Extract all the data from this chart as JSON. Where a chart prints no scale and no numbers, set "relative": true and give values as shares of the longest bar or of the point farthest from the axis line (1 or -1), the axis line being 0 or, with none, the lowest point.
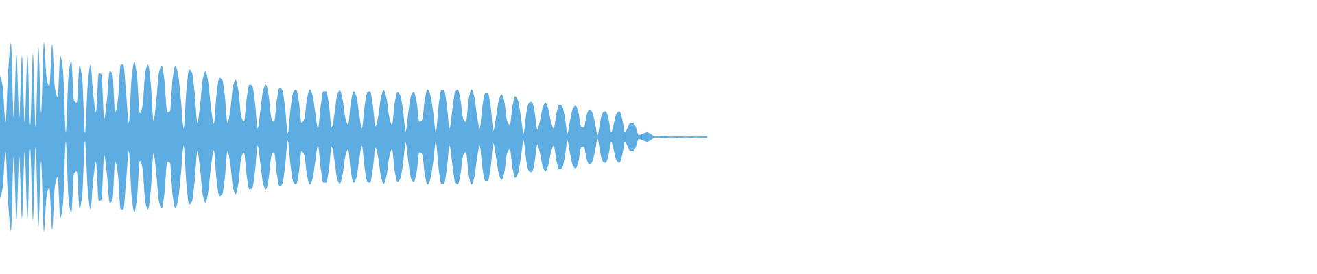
{
  "chart_data": {
    "type": "area",
    "relative": true,
    "categories": [
      null,
      null,
      null,
      null,
      null,
      null,
      null,
      null,
      null,
      null,
      null,
      null,
      null,
      null,
      null,
      null,
      null,
      null,
      null,
      null,
      null,
      null,
      null,
      null,
      null,
      null,
      null,
      null,
      null,
      null,
      null,
      null,
      null,
      null,
      null,
      null,
      null,
      null,
      null,
      null,
      null,
      null,
      null,
      null,
      null,
      null,
      null,
      null,
      null,
      null,
      null,
      null,
      null,
      null,
      null,
      null,
      null,
      null,
      null,
      null,
      null,
      null,
      null,
      null,
      null,
      null,
      null,
      null,
      null,
      null,
      null,
      null,
      null,
      null,
      null,
      null,
      null,
      null,
      null,
      null,
      null,
      null,
      null,
      null,
      null,
      null,
      null,
      null,
      null,
      null,
      null,
      null,
      null,
      null,
      null,
      null,
      null,
      null,
      null,
      null,
      null,
      null,
      null,
      null,
      null,
      null,
      null,
      null,
      null,
      null,
      null,
      null,
      null,
      null,
      null,
      null,
      null,
      null,
      null,
      null,
      null,
      null,
      null,
      null,
      null,
      null,
      null,
      null,
      null,
      null,
      null,
      null,
      null,
      null,
      null,
      null,
      null,
      null,
      null,
      null,
      null,
      null,
      null,
      null,
      null,
      null,
      null,
      null,
      null,
      null,
      null,
      null,
      null,
      null,
      null,
      null,
      null,
      null,
      null,
      null,
      null,
      null,
      null,
      null,
      null,
      null,
      null,
      null,
      null,
      null,
      null,
      null,
      null,
      null,
      null,
      null,
      null,
      null,
      null,
      null,
      null,
      null,
      null,
      null,
      null,
      null,
      null,
      null,
      null,
      null,
      null,
      null,
      null,
      null,
      null,
      null,
      null,
      null,
      null,
      null,
      null,
      null,
      null,
      null,
      null,
      null,
      null,
      null,
      null,
      null,
      null,
      null,
      null,
      null,
      null,
      null,
      null,
      null,
      null,
      null,
      null,
      null,
      null,
      null,
      null,
      null,
      null,
      null,
      null,
      null,
      null,
      null,
      null,
      null,
      null,
      null,
      null,
      null,
      null,
      null,
      null,
      null,
      null,
      null,
      null,
      null,
      null,
      null,
      null,
      null,
      null,
      null,
      null,
      null,
      null,
      null,
      null,
      null,
      null
    ],
    "series": [
      {
        "color": "#5dade2",
        "values": [
          0.65,
          0.53,
          0.15,
          0.7,
          0.99,
          0.2,
          0.87,
          0.2,
          0.86,
          0.15,
          0.86,
          0.12,
          0.88,
          0.1,
          0.95,
          0.25,
          1.0,
          0.62,
          0.53,
          0.98,
          0.52,
          0.42,
          0.85,
          0.69,
          0.05,
          0.65,
          0.8,
          0.38,
          0.36,
          0.75,
          0.61,
          0.04,
          0.55,
          0.76,
          0.45,
          0.26,
          0.67,
          0.66,
          0.19,
          0.39,
          0.69,
          0.67,
          0.26,
          0.39,
          0.76,
          0.76,
          0.46,
          0.15,
          0.62,
          0.79,
          0.63,
          0.25,
          0.33,
          0.68,
          0.76,
          0.56,
          0.17,
          0.38,
          0.68,
          0.75,
          0.59,
          0.26,
          0.27,
          0.62,
          0.75,
          0.65,
          0.39,
          0.09,
          0.49,
          0.71,
          0.68,
          0.47,
          0.15,
          0.34,
          0.61,
          0.69,
          0.57,
          0.3,
          0.14,
          0.45,
          0.62,
          0.61,
          0.44,
          0.15,
          0.28,
          0.53,
          0.6,
          0.48,
          0.22,
          0.16,
          0.41,
          0.55,
          0.54,
          0.37,
          0.09,
          0.28,
          0.49,
          0.55,
          0.44,
          0.2,
          0.16,
          0.39,
          0.52,
          0.49,
          0.31,
          0.04,
          0.3,
          0.47,
          0.5,
          0.38,
          0.15,
          0.19,
          0.4,
          0.5,
          0.44,
          0.26,
          0.09,
          0.33,
          0.48,
          0.48,
          0.34,
          0.1,
          0.24,
          0.44,
          0.49,
          0.39,
          0.2,
          0.13,
          0.37,
          0.48,
          0.43,
          0.25,
          0.09,
          0.32,
          0.47,
          0.48,
          0.34,
          0.11,
          0.22,
          0.42,
          0.49,
          0.41,
          0.21,
          0.13,
          0.36,
          0.47,
          0.44,
          0.29,
          0.06,
          0.27,
          0.44,
          0.47,
          0.37,
          0.16,
          0.18,
          0.4,
          0.5,
          0.44,
          0.27,
          0.05,
          0.33,
          0.49,
          0.49,
          0.34,
          0.09,
          0.28,
          0.47,
          0.5,
          0.39,
          0.19,
          0.16,
          0.4,
          0.5,
          0.43,
          0.23,
          0.09,
          0.33,
          0.46,
          0.46,
          0.32,
          0.07,
          0.22,
          0.39,
          0.45,
          0.37,
          0.17,
          0.13,
          0.33,
          0.43,
          0.38,
          0.22,
          0.04,
          0.25,
          0.36,
          0.37,
          0.27,
          0.08,
          0.17,
          0.31,
          0.36,
          0.3,
          0.16,
          0.09,
          0.25,
          0.34,
          0.33,
          0.22,
          0.04,
          0.18,
          0.3,
          0.33,
          0.26,
          0.11,
          0.1,
          0.23,
          0.29,
          0.26,
          0.16,
          0.02,
          0.17,
          0.26,
          0.27,
          0.19,
          0.05,
          0.15,
          0.25,
          0.27,
          0.19,
          0.05,
          0.1,
          0.15,
          0.15,
          0.1,
          0.02,
          0.03,
          0.04,
          0.05,
          0.04,
          0.02,
          0.005,
          0.005,
          0.01,
          0.01,
          0.01,
          0.005,
          0,
          0.005,
          0.005,
          0.005,
          0.005,
          0,
          0.005,
          0.005,
          0.005,
          0,
          0.005,
          0.005,
          0.005,
          0.005
        ]
      },
      {
        "color": "#5dade2",
        "values": [
          -0.65,
          -0.53,
          -0.15,
          -0.7,
          -0.99,
          -0.2,
          -0.87,
          -0.2,
          -0.86,
          -0.15,
          -0.86,
          -0.12,
          -0.88,
          -0.1,
          -0.95,
          -0.25,
          -1.0,
          -0.62,
          -0.53,
          -0.98,
          -0.52,
          -0.42,
          -0.85,
          -0.69,
          -0.05,
          -0.65,
          -0.8,
          -0.38,
          -0.36,
          -0.75,
          -0.61,
          -0.04,
          -0.55,
          -0.76,
          -0.45,
          -0.26,
          -0.67,
          -0.66,
          -0.19,
          -0.39,
          -0.69,
          -0.67,
          -0.26,
          -0.39,
          -0.76,
          -0.76,
          -0.46,
          -0.15,
          -0.62,
          -0.79,
          -0.63,
          -0.25,
          -0.33,
          -0.68,
          -0.76,
          -0.56,
          -0.17,
          -0.38,
          -0.68,
          -0.75,
          -0.59,
          -0.26,
          -0.27,
          -0.62,
          -0.75,
          -0.65,
          -0.39,
          -0.09,
          -0.49,
          -0.71,
          -0.68,
          -0.47,
          -0.15,
          -0.34,
          -0.61,
          -0.69,
          -0.57,
          -0.3,
          -0.14,
          -0.45,
          -0.62,
          -0.61,
          -0.44,
          -0.15,
          -0.28,
          -0.53,
          -0.6,
          -0.48,
          -0.22,
          -0.16,
          -0.41,
          -0.55,
          -0.54,
          -0.37,
          -0.09,
          -0.28,
          -0.49,
          -0.55,
          -0.44,
          -0.2,
          -0.16,
          -0.39,
          -0.52,
          -0.49,
          -0.31,
          -0.04,
          -0.3,
          -0.47,
          -0.5,
          -0.38,
          -0.15,
          -0.19,
          -0.4,
          -0.5,
          -0.44,
          -0.26,
          -0.09,
          -0.33,
          -0.48,
          -0.48,
          -0.34,
          -0.1,
          -0.24,
          -0.44,
          -0.49,
          -0.39,
          -0.2,
          -0.13,
          -0.37,
          -0.48,
          -0.43,
          -0.25,
          -0.09,
          -0.32,
          -0.47,
          -0.48,
          -0.34,
          -0.11,
          -0.22,
          -0.42,
          -0.49,
          -0.41,
          -0.21,
          -0.13,
          -0.36,
          -0.47,
          -0.44,
          -0.29,
          -0.06,
          -0.27,
          -0.44,
          -0.47,
          -0.37,
          -0.16,
          -0.18,
          -0.4,
          -0.5,
          -0.44,
          -0.27,
          -0.05,
          -0.33,
          -0.49,
          -0.49,
          -0.34,
          -0.09,
          -0.28,
          -0.47,
          -0.5,
          -0.39,
          -0.19,
          -0.16,
          -0.4,
          -0.5,
          -0.43,
          -0.23,
          -0.09,
          -0.33,
          -0.46,
          -0.46,
          -0.32,
          -0.07,
          -0.22,
          -0.39,
          -0.45,
          -0.37,
          -0.17,
          -0.13,
          -0.33,
          -0.43,
          -0.38,
          -0.22,
          -0.04,
          -0.25,
          -0.36,
          -0.37,
          -0.27,
          -0.08,
          -0.17,
          -0.31,
          -0.36,
          -0.3,
          -0.16,
          -0.09,
          -0.25,
          -0.34,
          -0.33,
          -0.22,
          -0.04,
          -0.18,
          -0.3,
          -0.33,
          -0.26,
          -0.11,
          -0.1,
          -0.23,
          -0.29,
          -0.26,
          -0.16,
          -0.02,
          -0.17,
          -0.26,
          -0.27,
          -0.19,
          -0.05,
          -0.15,
          -0.25,
          -0.27,
          -0.19,
          -0.05,
          -0.1,
          -0.15,
          -0.15,
          -0.1,
          -0.02,
          -0.03,
          -0.04,
          -0.05,
          -0.04,
          -0.02,
          -0.005,
          -0.005,
          -0.01,
          -0.01,
          -0.01,
          -0.005,
          0,
          -0.005,
          -0.01,
          -0.005,
          -0.005,
          0,
          -0.005,
          -0.01,
          -0.005,
          0,
          -0.005,
          -0.005,
          -0.005,
          -0.005
        ]
      }
    ],
    "ref_lines": [
      {
        "axis": "y",
        "value": 0,
        "color": "#5dade2"
      }
    ]
  }
}
